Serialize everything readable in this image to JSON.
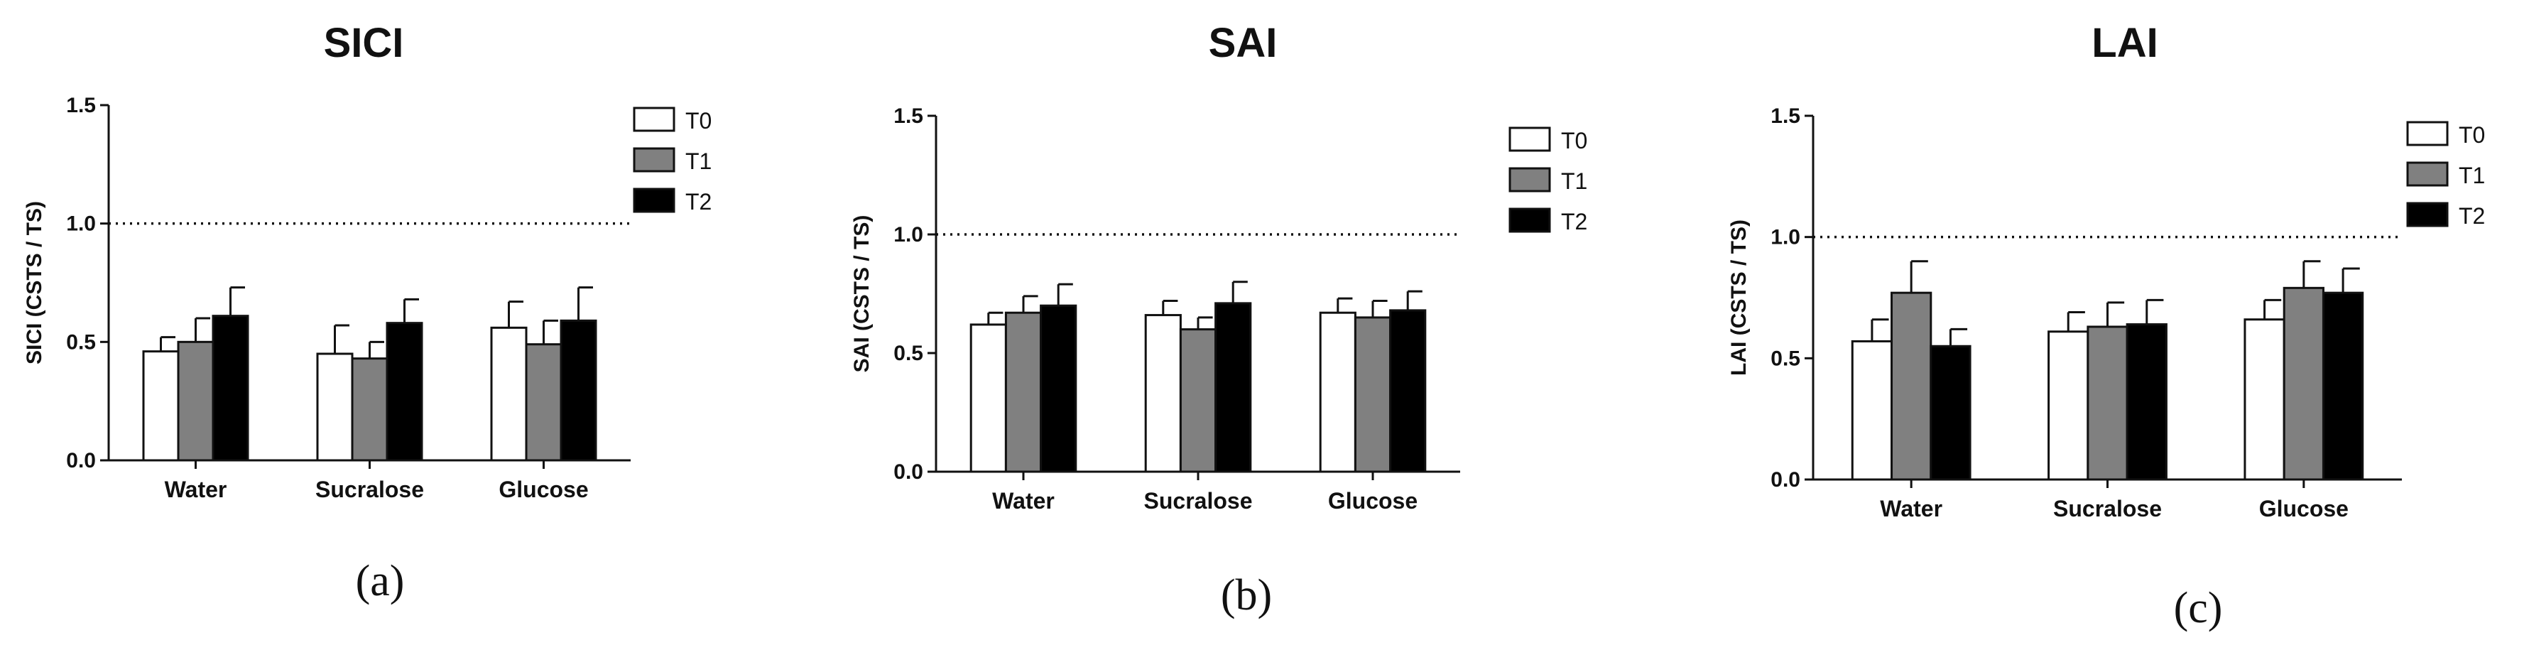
{
  "chart_data": [
    {
      "type": "bar",
      "panel_label": "(a)",
      "title": "SICI",
      "ylabel": "SICI (CSTS / TS)",
      "xlabel": "",
      "ylim": [
        0,
        1.5
      ],
      "yticks": [
        "0.0",
        "0.5",
        "1.0",
        "1.5"
      ],
      "reference_line": 1.0,
      "legend_position": "top-right",
      "categories": [
        "Water",
        "Sucralose",
        "Glucose"
      ],
      "series": [
        {
          "name": "T0",
          "color": "#ffffff",
          "values": [
            0.46,
            0.45,
            0.56
          ],
          "errors": [
            0.06,
            0.12,
            0.11
          ]
        },
        {
          "name": "T1",
          "color": "#808080",
          "values": [
            0.5,
            0.43,
            0.49
          ],
          "errors": [
            0.1,
            0.07,
            0.1
          ]
        },
        {
          "name": "T2",
          "color": "#000000",
          "values": [
            0.61,
            0.58,
            0.59
          ],
          "errors": [
            0.12,
            0.1,
            0.14
          ]
        }
      ]
    },
    {
      "type": "bar",
      "panel_label": "(b)",
      "title": "SAI",
      "ylabel": "SAI (CSTS / TS)",
      "xlabel": "",
      "ylim": [
        0,
        1.5
      ],
      "yticks": [
        "0.0",
        "0.5",
        "1.0",
        "1.5"
      ],
      "reference_line": 1.0,
      "legend_position": "top-right",
      "categories": [
        "Water",
        "Sucralose",
        "Glucose"
      ],
      "series": [
        {
          "name": "T0",
          "color": "#ffffff",
          "values": [
            0.62,
            0.66,
            0.67
          ],
          "errors": [
            0.05,
            0.06,
            0.06
          ]
        },
        {
          "name": "T1",
          "color": "#808080",
          "values": [
            0.67,
            0.6,
            0.65
          ],
          "errors": [
            0.07,
            0.05,
            0.07
          ]
        },
        {
          "name": "T2",
          "color": "#000000",
          "values": [
            0.7,
            0.71,
            0.68
          ],
          "errors": [
            0.09,
            0.09,
            0.08
          ]
        }
      ]
    },
    {
      "type": "bar",
      "panel_label": "(c)",
      "title": "LAI",
      "ylabel": "LAI (CSTS / TS)",
      "xlabel": "",
      "ylim": [
        0,
        1.5
      ],
      "yticks": [
        "0.0",
        "0.5",
        "1.0",
        "1.5"
      ],
      "reference_line": 1.0,
      "legend_position": "top-right",
      "categories": [
        "Water",
        "Sucralose",
        "Glucose"
      ],
      "series": [
        {
          "name": "T0",
          "color": "#ffffff",
          "values": [
            0.57,
            0.61,
            0.66
          ],
          "errors": [
            0.09,
            0.08,
            0.08
          ]
        },
        {
          "name": "T1",
          "color": "#808080",
          "values": [
            0.77,
            0.63,
            0.79
          ],
          "errors": [
            0.13,
            0.1,
            0.11
          ]
        },
        {
          "name": "T2",
          "color": "#000000",
          "values": [
            0.55,
            0.64,
            0.77
          ],
          "errors": [
            0.07,
            0.1,
            0.1
          ]
        }
      ]
    }
  ]
}
